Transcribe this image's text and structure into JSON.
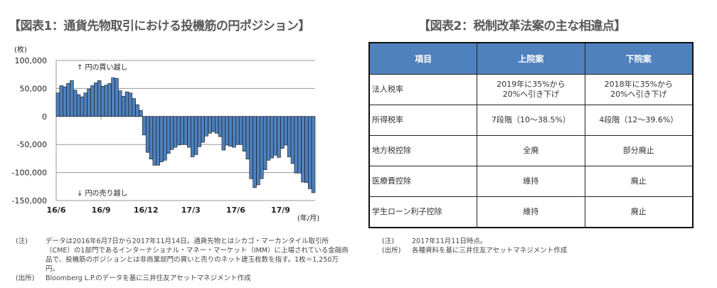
{
  "figure1": {
    "title": "【図表1：通貨先物取引における投機筋の円ポジション】",
    "notes": [
      {
        "label": "(注)",
        "text": "データは2016年6月7日から2017年11月14日。通貨先物とはシカゴ・マーカンタイル取引所（CME）の1部門であるインターナショナル・マネー・マーケット（IMM）に上場されている金融商品で、投機筋のポジションとは非商業部門の買いと売りのネット建玉枚数を指す。1枚＝1,250万円。"
      },
      {
        "label": "(出所)",
        "text": "Bloomberg L.P.のデータを基に三井住友アセットマネジメント作成"
      }
    ]
  },
  "chart_data": {
    "type": "bar",
    "title": "",
    "ylabel": "(枚)",
    "xlabel": "(年/月)",
    "ylim": [
      -150000,
      100000
    ],
    "yticks": [
      100000,
      50000,
      0,
      -50000,
      -100000,
      -150000
    ],
    "ytick_labels": [
      "100,000",
      "50,000",
      "0",
      "-50,000",
      "-100,000",
      "-150,000"
    ],
    "xtick_labels": [
      {
        "label": "16/6",
        "index": 0
      },
      {
        "label": "16/9",
        "index": 13
      },
      {
        "label": "16/12",
        "index": 26
      },
      {
        "label": "17/3",
        "index": 39
      },
      {
        "label": "17/6",
        "index": 52
      },
      {
        "label": "17/9",
        "index": 65
      }
    ],
    "grid": "horizontal",
    "annotations": {
      "up": "↑ 円の買い越し",
      "down": "↓ 円の売り越し"
    },
    "bar_color": "#4f81bd",
    "values": [
      42000,
      55000,
      53000,
      59000,
      64000,
      47000,
      39000,
      35000,
      42000,
      49000,
      55000,
      60000,
      64000,
      54000,
      56000,
      59000,
      69000,
      68000,
      46000,
      36000,
      44000,
      42000,
      32000,
      21000,
      11000,
      -33000,
      -64000,
      -76000,
      -87000,
      -87000,
      -81000,
      -78000,
      -66000,
      -59000,
      -55000,
      -51000,
      -50000,
      -50000,
      -55000,
      -72000,
      -68000,
      -54000,
      -46000,
      -35000,
      -30000,
      -27000,
      -30000,
      -36000,
      -60000,
      -51000,
      -53000,
      -55000,
      -50000,
      -50000,
      -62000,
      -76000,
      -111000,
      -127000,
      -122000,
      -111000,
      -95000,
      -78000,
      -74000,
      -69000,
      -73000,
      -57000,
      -51000,
      -72000,
      -84000,
      -101000,
      -101000,
      -117000,
      -118000,
      -129000,
      -136000
    ]
  },
  "figure2": {
    "title": "【図表2：税制改革法案の主な相違点】",
    "header_color": "#4f81bd",
    "headers": [
      "項目",
      "上院案",
      "下院案"
    ],
    "rows": [
      [
        "法人税率",
        "2019年に35%から\n20%へ引き下げ",
        "2018年に35%から\n20%へ引き下げ"
      ],
      [
        "所得税率",
        "7段階（10～38.5%）",
        "4段階（12～39.6%）"
      ],
      [
        "地方税控除",
        "全廃",
        "部分廃止"
      ],
      [
        "医療費控除",
        "維持",
        "廃止"
      ],
      [
        "学生ローン利子控除",
        "維持",
        "廃止"
      ]
    ],
    "notes": [
      {
        "label": "(注)",
        "text": "2017年11月11日時点。"
      },
      {
        "label": "(出所)",
        "text": "各種資料を基に三井住友アセットマネジメント作成"
      }
    ]
  }
}
